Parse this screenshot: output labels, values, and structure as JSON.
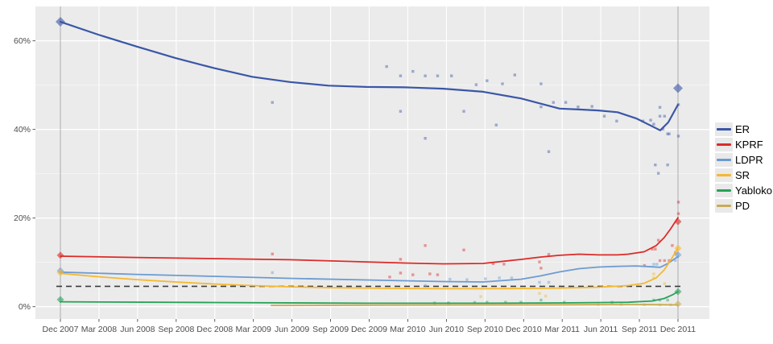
{
  "chart_data": {
    "type": "scatter",
    "subtype": "polls-with-smoothed-trend-lines",
    "title": "",
    "xlabel": "",
    "ylabel": "",
    "x_axis": {
      "tick_labels": [
        "Dec 2007",
        "Mar 2008",
        "Jun 2008",
        "Sep 2008",
        "Dec 2008",
        "Mar 2009",
        "Jun 2009",
        "Sep 2009",
        "Dec 2009",
        "Mar 2010",
        "Jun 2010",
        "Sep 2010",
        "Dec 2010",
        "Mar 2011",
        "Jun 2011",
        "Sep 2011",
        "Dec 2011"
      ],
      "tick_positions": [
        2007.917,
        2008.167,
        2008.417,
        2008.667,
        2008.917,
        2009.167,
        2009.417,
        2009.667,
        2009.917,
        2010.167,
        2010.417,
        2010.667,
        2010.917,
        2011.167,
        2011.417,
        2011.667,
        2011.917
      ]
    },
    "y_axis": {
      "tick_labels": [
        "0%",
        "20%",
        "40%",
        "60%"
      ],
      "tick_values": [
        0,
        20,
        40,
        60
      ],
      "minor_values": [
        10,
        30,
        50
      ],
      "ylim": [
        -2.5,
        67.5
      ]
    },
    "grid": "on",
    "legend_position": "right",
    "panel_bg": "#ebebeb",
    "grid_color": "#ffffff",
    "tick_text_color": "#4d4d4d",
    "election_vlines": [
      2007.917,
      2011.917
    ],
    "vline_color": "#a3a3a8",
    "threshold_line": {
      "value": 4.6,
      "style": "dashed",
      "color": "#3c3c3c"
    },
    "series": [
      {
        "name": "ER",
        "color": "#3a57a7",
        "smooth": [
          [
            2007.917,
            64.3
          ],
          [
            2008.162,
            61.4
          ],
          [
            2008.412,
            58.7
          ],
          [
            2008.663,
            56.1
          ],
          [
            2008.908,
            53.9
          ],
          [
            2009.158,
            51.9
          ],
          [
            2009.403,
            50.7
          ],
          [
            2009.654,
            49.9
          ],
          [
            2009.899,
            49.6
          ],
          [
            2010.149,
            49.5
          ],
          [
            2010.399,
            49.2
          ],
          [
            2010.655,
            48.5
          ],
          [
            2010.9,
            47.0
          ],
          [
            2011.15,
            44.7
          ],
          [
            2011.276,
            44.5
          ],
          [
            2011.401,
            44.3
          ],
          [
            2011.526,
            43.9
          ],
          [
            2011.646,
            42.5
          ],
          [
            2011.75,
            40.7
          ],
          [
            2011.802,
            39.8
          ],
          [
            2011.854,
            41.6
          ],
          [
            2011.917,
            45.6
          ]
        ],
        "points": [
          [
            2009.29,
            46.1
          ],
          [
            2010.03,
            54.2
          ],
          [
            2010.12,
            52.1
          ],
          [
            2010.12,
            44.1
          ],
          [
            2010.2,
            53.1
          ],
          [
            2010.28,
            52.1
          ],
          [
            2010.28,
            38.0
          ],
          [
            2010.36,
            52.1
          ],
          [
            2010.45,
            52.1
          ],
          [
            2010.53,
            44.1
          ],
          [
            2010.61,
            50.1
          ],
          [
            2010.68,
            51.0
          ],
          [
            2010.74,
            41.0
          ],
          [
            2010.78,
            50.3
          ],
          [
            2010.86,
            52.3
          ],
          [
            2011.03,
            50.3
          ],
          [
            2011.03,
            45.1
          ],
          [
            2011.08,
            35.0
          ],
          [
            2011.11,
            46.1
          ],
          [
            2011.19,
            46.1
          ],
          [
            2011.27,
            45.1
          ],
          [
            2011.36,
            45.2
          ],
          [
            2011.44,
            43.0
          ],
          [
            2011.52,
            41.9
          ],
          [
            2011.69,
            41.9
          ],
          [
            2011.74,
            42.1
          ],
          [
            2011.76,
            41.2
          ],
          [
            2011.77,
            32.0
          ],
          [
            2011.79,
            30.1
          ],
          [
            2011.8,
            45.0
          ],
          [
            2011.8,
            43.0
          ],
          [
            2011.82,
            40.1
          ],
          [
            2011.83,
            43.0
          ],
          [
            2011.85,
            39.0
          ],
          [
            2011.85,
            32.0
          ],
          [
            2011.86,
            39.0
          ],
          [
            2011.92,
            45.6
          ],
          [
            2011.92,
            38.5
          ]
        ],
        "elections": [
          [
            2007.917,
            64.3
          ],
          [
            2011.917,
            49.3
          ]
        ]
      },
      {
        "name": "KPRF",
        "color": "#db2b27",
        "smooth": [
          [
            2007.917,
            11.4
          ],
          [
            2008.412,
            11.1
          ],
          [
            2008.908,
            10.85
          ],
          [
            2009.403,
            10.6
          ],
          [
            2009.899,
            10.1
          ],
          [
            2010.149,
            9.85
          ],
          [
            2010.399,
            9.67
          ],
          [
            2010.655,
            9.76
          ],
          [
            2010.9,
            10.67
          ],
          [
            2011.025,
            11.2
          ],
          [
            2011.15,
            11.6
          ],
          [
            2011.276,
            11.85
          ],
          [
            2011.401,
            11.7
          ],
          [
            2011.526,
            11.7
          ],
          [
            2011.594,
            11.85
          ],
          [
            2011.698,
            12.4
          ],
          [
            2011.776,
            13.8
          ],
          [
            2011.828,
            15.6
          ],
          [
            2011.87,
            17.6
          ],
          [
            2011.917,
            20.1
          ]
        ],
        "points": [
          [
            2009.29,
            11.9
          ],
          [
            2010.05,
            6.7
          ],
          [
            2010.12,
            10.7
          ],
          [
            2010.12,
            7.6
          ],
          [
            2010.2,
            7.2
          ],
          [
            2010.28,
            13.8
          ],
          [
            2010.31,
            7.4
          ],
          [
            2010.36,
            7.2
          ],
          [
            2010.53,
            12.8
          ],
          [
            2010.72,
            9.7
          ],
          [
            2010.79,
            9.6
          ],
          [
            2011.02,
            10.1
          ],
          [
            2011.03,
            8.7
          ],
          [
            2011.08,
            11.8
          ],
          [
            2011.7,
            9.3
          ],
          [
            2011.75,
            13.0
          ],
          [
            2011.77,
            13.0
          ],
          [
            2011.79,
            15.0
          ],
          [
            2011.8,
            10.4
          ],
          [
            2011.83,
            10.4
          ],
          [
            2011.86,
            10.4
          ],
          [
            2011.88,
            13.8
          ],
          [
            2011.9,
            12.2
          ],
          [
            2011.92,
            23.6
          ],
          [
            2011.92,
            21.0
          ]
        ],
        "elections": [
          [
            2007.917,
            11.6
          ],
          [
            2011.917,
            19.2
          ]
        ]
      },
      {
        "name": "LDPR",
        "color": "#6c9bd2",
        "smooth": [
          [
            2007.917,
            7.8
          ],
          [
            2008.412,
            7.3
          ],
          [
            2008.908,
            6.85
          ],
          [
            2009.403,
            6.4
          ],
          [
            2009.899,
            6.03
          ],
          [
            2010.149,
            5.85
          ],
          [
            2010.399,
            5.67
          ],
          [
            2010.655,
            5.58
          ],
          [
            2010.9,
            6.2
          ],
          [
            2011.025,
            6.95
          ],
          [
            2011.15,
            7.85
          ],
          [
            2011.276,
            8.58
          ],
          [
            2011.401,
            8.95
          ],
          [
            2011.526,
            9.1
          ],
          [
            2011.646,
            9.2
          ],
          [
            2011.75,
            9.0
          ],
          [
            2011.802,
            8.9
          ],
          [
            2011.854,
            9.8
          ],
          [
            2011.917,
            11.3
          ]
        ],
        "points": [
          [
            2009.29,
            7.7
          ],
          [
            2010.28,
            4.8
          ],
          [
            2010.44,
            6.2
          ],
          [
            2010.55,
            6.1
          ],
          [
            2010.67,
            6.3
          ],
          [
            2010.76,
            6.5
          ],
          [
            2010.84,
            6.5
          ],
          [
            2011.02,
            5.5
          ],
          [
            2011.08,
            5.5
          ],
          [
            2011.76,
            9.6
          ],
          [
            2011.78,
            9.6
          ],
          [
            2011.9,
            10.4
          ]
        ],
        "elections": [
          [
            2007.917,
            8.1
          ],
          [
            2011.917,
            11.7
          ]
        ]
      },
      {
        "name": "SR",
        "color": "#f5b82e",
        "smooth": [
          [
            2007.917,
            7.5
          ],
          [
            2008.162,
            6.76
          ],
          [
            2008.412,
            6.1
          ],
          [
            2008.663,
            5.58
          ],
          [
            2008.908,
            5.13
          ],
          [
            2009.158,
            4.76
          ],
          [
            2009.403,
            4.49
          ],
          [
            2009.654,
            4.3
          ],
          [
            2009.899,
            4.2
          ],
          [
            2010.149,
            4.1
          ],
          [
            2010.399,
            4.05
          ],
          [
            2010.655,
            4.05
          ],
          [
            2010.9,
            4.1
          ],
          [
            2011.15,
            4.2
          ],
          [
            2011.401,
            4.4
          ],
          [
            2011.594,
            4.76
          ],
          [
            2011.698,
            5.3
          ],
          [
            2011.776,
            6.5
          ],
          [
            2011.828,
            8.3
          ],
          [
            2011.87,
            10.5
          ],
          [
            2011.917,
            13.3
          ]
        ],
        "points": [
          [
            2010.64,
            2.3
          ],
          [
            2011.02,
            3.0
          ],
          [
            2011.06,
            2.4
          ],
          [
            2011.76,
            7.4
          ],
          [
            2011.76,
            6.5
          ],
          [
            2011.83,
            5.2
          ]
        ],
        "elections": [
          [
            2007.917,
            7.7
          ],
          [
            2011.917,
            13.2
          ]
        ]
      },
      {
        "name": "Yabloko",
        "color": "#27a258",
        "smooth": [
          [
            2007.917,
            1.1
          ],
          [
            2008.908,
            0.95
          ],
          [
            2009.899,
            0.78
          ],
          [
            2010.655,
            0.78
          ],
          [
            2011.15,
            0.85
          ],
          [
            2011.594,
            1.0
          ],
          [
            2011.75,
            1.3
          ],
          [
            2011.828,
            1.85
          ],
          [
            2011.88,
            2.65
          ],
          [
            2011.917,
            3.4
          ]
        ],
        "points": [
          [
            2010.34,
            0.85
          ],
          [
            2010.43,
            0.85
          ],
          [
            2010.6,
            0.95
          ],
          [
            2010.68,
            1.0
          ],
          [
            2010.8,
            1.0
          ],
          [
            2010.9,
            1.0
          ],
          [
            2011.03,
            1.5
          ],
          [
            2011.18,
            1.0
          ],
          [
            2011.49,
            1.0
          ],
          [
            2011.76,
            1.5
          ],
          [
            2011.8,
            1.5
          ],
          [
            2011.85,
            1.5
          ]
        ],
        "elections": [
          [
            2007.917,
            1.6
          ],
          [
            2011.917,
            3.4
          ]
        ]
      },
      {
        "name": "PD",
        "color": "#c9ac56",
        "smooth": [
          [
            2009.283,
            0.28
          ],
          [
            2009.899,
            0.35
          ],
          [
            2010.655,
            0.4
          ],
          [
            2011.15,
            0.44
          ],
          [
            2011.594,
            0.5
          ],
          [
            2011.802,
            0.45
          ],
          [
            2011.917,
            0.4
          ]
        ],
        "points": [
          [
            2011.4,
            0.5
          ],
          [
            2011.55,
            0.5
          ],
          [
            2011.7,
            0.45
          ],
          [
            2011.8,
            0.4
          ],
          [
            2011.87,
            0.4
          ]
        ],
        "elections": [
          [
            2011.917,
            0.6
          ]
        ]
      }
    ]
  },
  "legend": {
    "items": [
      "ER",
      "KPRF",
      "LDPR",
      "SR",
      "Yabloko",
      "PD"
    ]
  }
}
